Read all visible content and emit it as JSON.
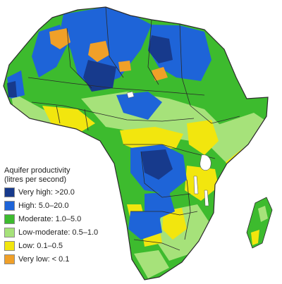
{
  "legend": {
    "title_line1": "Aquifer productivity",
    "title_line2": "(litres per second)",
    "items": [
      {
        "label": "Very high: >20.0",
        "color": "#173a8c"
      },
      {
        "label": "High: 5.0–20.0",
        "color": "#1e64d8"
      },
      {
        "label": "Moderate: 1.0–5.0",
        "color": "#3dbb2e"
      },
      {
        "label": "Low-moderate: 0.5–1.0",
        "color": "#a6e27a"
      },
      {
        "label": "Low: 0.1–0.5",
        "color": "#f2e60e"
      },
      {
        "label": "Very low: < 0.1",
        "color": "#f0a028"
      }
    ]
  },
  "colors": {
    "very_high": "#173a8c",
    "high": "#1e64d8",
    "moderate": "#3dbb2e",
    "low_moderate": "#a6e27a",
    "low": "#f2e60e",
    "very_low": "#f0a028",
    "border": "#2a2a2a"
  }
}
